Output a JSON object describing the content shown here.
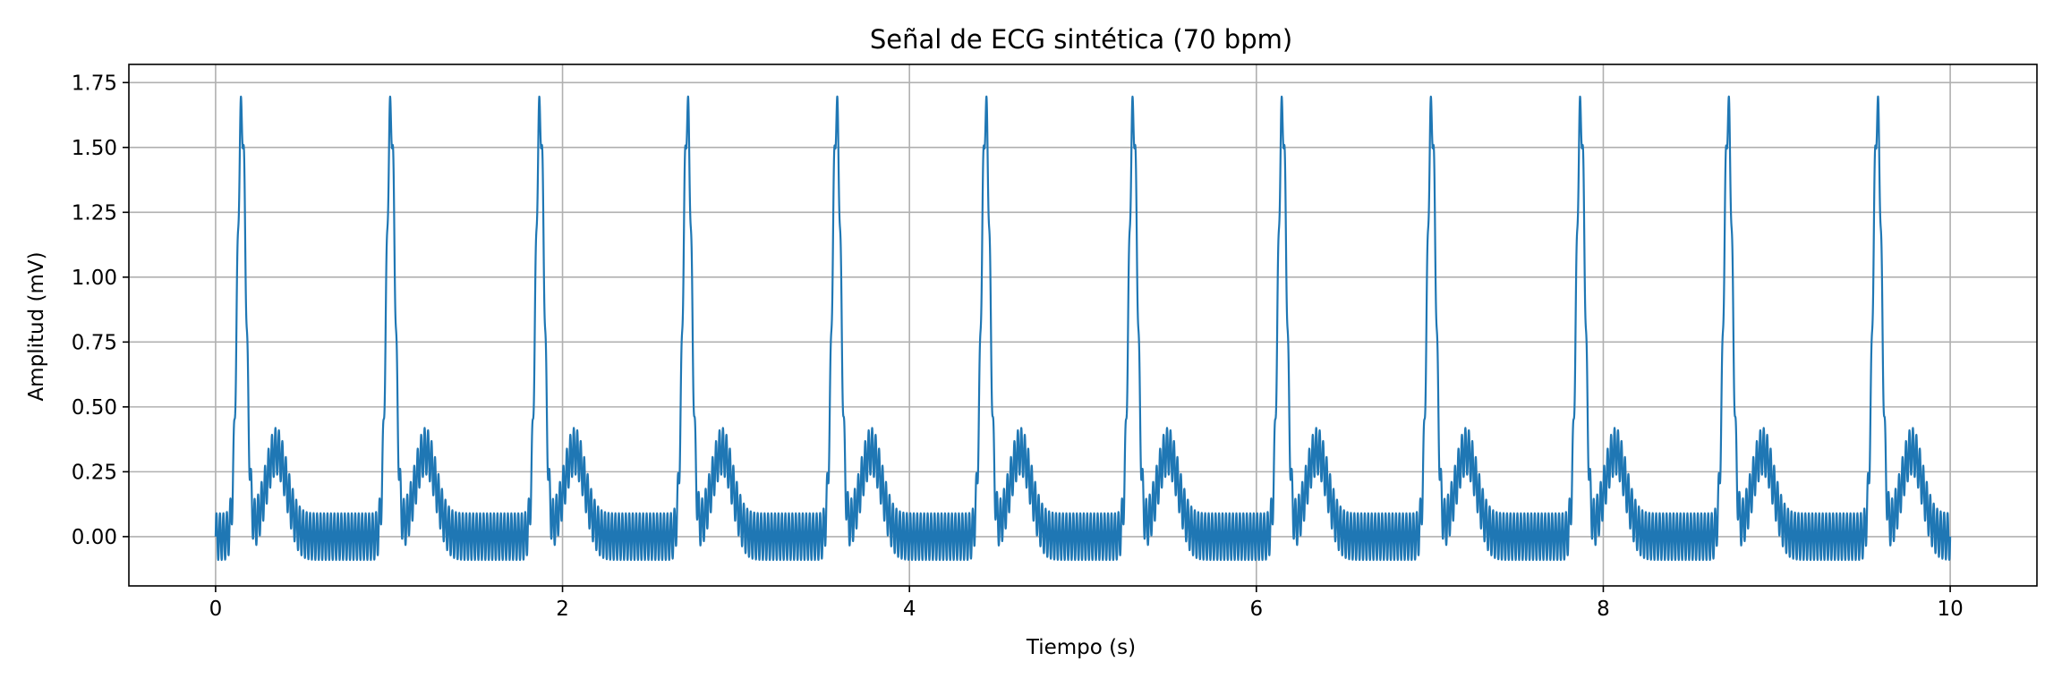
{
  "chart_data": {
    "type": "line",
    "title": "Señal de ECG sintética (70 bpm)",
    "xlabel": "Tiempo (s)",
    "ylabel": "Amplitud (mV)",
    "xlim": [
      -0.5,
      10.5
    ],
    "ylim": [
      -0.19,
      1.82
    ],
    "x_ticks": [
      0,
      2,
      4,
      6,
      8,
      10
    ],
    "x_tick_labels": [
      "0",
      "2",
      "4",
      "6",
      "8",
      "10"
    ],
    "y_ticks": [
      0.0,
      0.25,
      0.5,
      0.75,
      1.0,
      1.25,
      1.5,
      1.75
    ],
    "y_tick_labels": [
      "0.00",
      "0.25",
      "0.50",
      "0.75",
      "1.00",
      "1.25",
      "1.50",
      "1.75"
    ],
    "grid": true,
    "line_color": "#1f77b4",
    "series": [
      {
        "heart_rate_bpm": 70,
        "beat_period_s": 0.857,
        "duration_s": 10,
        "sample_step_s": 0.001,
        "baseline_mV": 0.0,
        "noise_amplitude_mV": 0.09,
        "noise_frequency_hz": 50,
        "beat_peaks_s": [
          0.15,
          1.01,
          1.87,
          2.72,
          3.58,
          4.44,
          5.29,
          6.15,
          7.01,
          7.87,
          8.72,
          9.58
        ],
        "r_peak_amplitude_mV": 1.63,
        "t_wave_offset_s": 0.2,
        "t_wave_amplitude_mV": 0.33,
        "t_wave_width_s": 0.06
      }
    ]
  }
}
